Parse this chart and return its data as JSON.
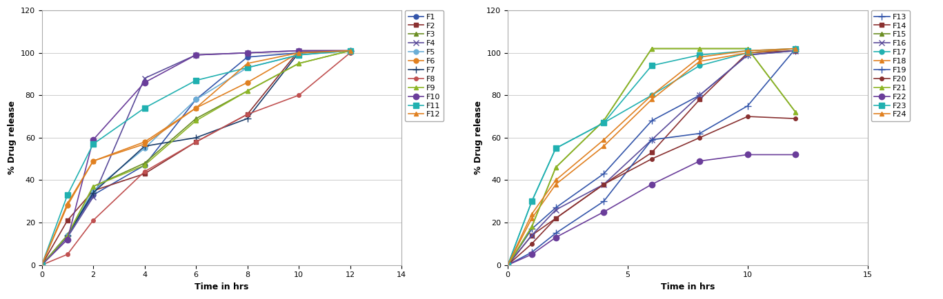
{
  "chart1": {
    "xlabel": "Time in hrs",
    "ylabel": "% Drug release",
    "xlim": [
      0,
      14
    ],
    "ylim": [
      0,
      120
    ],
    "xticks": [
      0,
      2,
      4,
      6,
      8,
      10,
      12,
      14
    ],
    "yticks": [
      0,
      20,
      40,
      60,
      80,
      100,
      120
    ],
    "series": {
      "F1": {
        "color": "#3355AA",
        "marker": "o",
        "markersize": 5,
        "x": [
          0,
          1,
          2,
          4,
          6,
          8,
          10,
          12
        ],
        "y": [
          0,
          14,
          33,
          47,
          78,
          98,
          100,
          101
        ]
      },
      "F2": {
        "color": "#8B3030",
        "marker": "s",
        "markersize": 5,
        "x": [
          0,
          1,
          2,
          4,
          6,
          8,
          10,
          12
        ],
        "y": [
          0,
          21,
          35,
          43,
          58,
          71,
          101,
          101
        ]
      },
      "F3": {
        "color": "#6B8E23",
        "marker": "^",
        "markersize": 5,
        "x": [
          0,
          1,
          2,
          4,
          6,
          8,
          10,
          12
        ],
        "y": [
          0,
          14,
          37,
          48,
          69,
          82,
          95,
          101
        ]
      },
      "F4": {
        "color": "#5B4C9A",
        "marker": "x",
        "markersize": 6,
        "x": [
          0,
          1,
          2,
          4,
          6,
          8,
          10,
          12
        ],
        "y": [
          0,
          13,
          32,
          88,
          99,
          100,
          101,
          101
        ]
      },
      "F5": {
        "color": "#6BAED6",
        "marker": "o",
        "markersize": 5,
        "x": [
          0,
          1,
          2,
          4,
          6,
          8,
          10,
          12
        ],
        "y": [
          0,
          14,
          35,
          55,
          78,
          93,
          99,
          101
        ]
      },
      "F6": {
        "color": "#E08020",
        "marker": "o",
        "markersize": 5,
        "x": [
          0,
          1,
          2,
          4,
          6,
          8,
          10,
          12
        ],
        "y": [
          0,
          28,
          49,
          58,
          74,
          86,
          100,
          101
        ]
      },
      "F7": {
        "color": "#1A3C6A",
        "marker": "+",
        "markersize": 7,
        "x": [
          0,
          1,
          2,
          4,
          6,
          8,
          10,
          12
        ],
        "y": [
          0,
          14,
          34,
          56,
          60,
          69,
          100,
          101
        ]
      },
      "F8": {
        "color": "#C05050",
        "marker": "o",
        "markersize": 4,
        "x": [
          0,
          1,
          2,
          4,
          6,
          8,
          10,
          12
        ],
        "y": [
          0,
          5,
          21,
          44,
          58,
          71,
          80,
          100
        ]
      },
      "F9": {
        "color": "#8DB626",
        "marker": "^",
        "markersize": 5,
        "x": [
          0,
          1,
          2,
          4,
          6,
          8,
          10,
          12
        ],
        "y": [
          0,
          14,
          37,
          47,
          68,
          82,
          95,
          101
        ]
      },
      "F10": {
        "color": "#6A3D9A",
        "marker": "o",
        "markersize": 6,
        "x": [
          0,
          1,
          2,
          4,
          6,
          8,
          10,
          12
        ],
        "y": [
          0,
          12,
          59,
          86,
          99,
          100,
          101,
          101
        ]
      },
      "F11": {
        "color": "#20B0B0",
        "marker": "s",
        "markersize": 6,
        "x": [
          0,
          1,
          2,
          4,
          6,
          8,
          10,
          12
        ],
        "y": [
          0,
          33,
          57,
          74,
          87,
          93,
          99,
          101
        ]
      },
      "F12": {
        "color": "#E08020",
        "marker": "^",
        "markersize": 5,
        "x": [
          0,
          1,
          2,
          4,
          6,
          8,
          10,
          12
        ],
        "y": [
          0,
          29,
          49,
          57,
          74,
          95,
          100,
          101
        ]
      }
    }
  },
  "chart2": {
    "xlabel": "Time in hrs",
    "ylabel": "% Drug release",
    "xlim": [
      0,
      15
    ],
    "ylim": [
      0,
      120
    ],
    "xticks": [
      0,
      5,
      10,
      15
    ],
    "yticks": [
      0,
      20,
      40,
      60,
      80,
      100,
      120
    ],
    "series": {
      "F13": {
        "color": "#3355AA",
        "marker": "+",
        "markersize": 7,
        "x": [
          0,
          1,
          2,
          4,
          6,
          8,
          10,
          12
        ],
        "y": [
          0,
          17,
          27,
          43,
          68,
          80,
          99,
          101
        ]
      },
      "F14": {
        "color": "#8B3030",
        "marker": "s",
        "markersize": 5,
        "x": [
          0,
          1,
          2,
          4,
          6,
          8,
          10,
          12
        ],
        "y": [
          0,
          14,
          22,
          38,
          53,
          78,
          100,
          101
        ]
      },
      "F15": {
        "color": "#6B8E23",
        "marker": "^",
        "markersize": 5,
        "x": [
          0,
          1,
          2,
          4,
          6,
          8,
          10,
          12
        ],
        "y": [
          0,
          18,
          46,
          68,
          102,
          102,
          102,
          72
        ]
      },
      "F16": {
        "color": "#5B4C9A",
        "marker": "x",
        "markersize": 6,
        "x": [
          0,
          1,
          2,
          4,
          6,
          8,
          10,
          12
        ],
        "y": [
          0,
          14,
          26,
          38,
          59,
          80,
          99,
          101
        ]
      },
      "F17": {
        "color": "#20B0B0",
        "marker": "o",
        "markersize": 5,
        "x": [
          0,
          1,
          2,
          4,
          6,
          8,
          10,
          12
        ],
        "y": [
          0,
          30,
          55,
          67,
          80,
          94,
          100,
          102
        ]
      },
      "F18": {
        "color": "#E08020",
        "marker": "^",
        "markersize": 5,
        "x": [
          0,
          1,
          2,
          4,
          6,
          8,
          10,
          12
        ],
        "y": [
          0,
          22,
          38,
          56,
          78,
          96,
          100,
          102
        ]
      },
      "F19": {
        "color": "#3355AA",
        "marker": "+",
        "markersize": 7,
        "x": [
          0,
          1,
          2,
          4,
          6,
          8,
          10,
          12
        ],
        "y": [
          0,
          6,
          15,
          30,
          59,
          62,
          75,
          102
        ]
      },
      "F20": {
        "color": "#883030",
        "marker": "o",
        "markersize": 4,
        "x": [
          0,
          1,
          2,
          4,
          6,
          8,
          10,
          12
        ],
        "y": [
          0,
          10,
          22,
          38,
          50,
          60,
          70,
          69
        ]
      },
      "F21": {
        "color": "#8DB626",
        "marker": "^",
        "markersize": 5,
        "x": [
          0,
          1,
          2,
          4,
          6,
          8,
          10,
          12
        ],
        "y": [
          0,
          18,
          46,
          68,
          102,
          102,
          102,
          72
        ]
      },
      "F22": {
        "color": "#6A3D9A",
        "marker": "o",
        "markersize": 6,
        "x": [
          0,
          1,
          2,
          4,
          6,
          8,
          10,
          12
        ],
        "y": [
          0,
          5,
          13,
          25,
          38,
          49,
          52,
          52
        ]
      },
      "F23": {
        "color": "#20B0B0",
        "marker": "s",
        "markersize": 6,
        "x": [
          0,
          1,
          2,
          4,
          6,
          8,
          10,
          12
        ],
        "y": [
          0,
          30,
          55,
          67,
          94,
          99,
          101,
          102
        ]
      },
      "F24": {
        "color": "#E08020",
        "marker": "^",
        "markersize": 5,
        "x": [
          0,
          1,
          2,
          4,
          6,
          8,
          10,
          12
        ],
        "y": [
          0,
          24,
          40,
          59,
          80,
          98,
          101,
          102
        ]
      }
    }
  },
  "bg_color": "#ffffff",
  "plot_bg": "#ffffff",
  "grid_color": "#cccccc",
  "title_fontsize": 9,
  "label_fontsize": 9,
  "tick_fontsize": 8,
  "legend_fontsize": 8
}
